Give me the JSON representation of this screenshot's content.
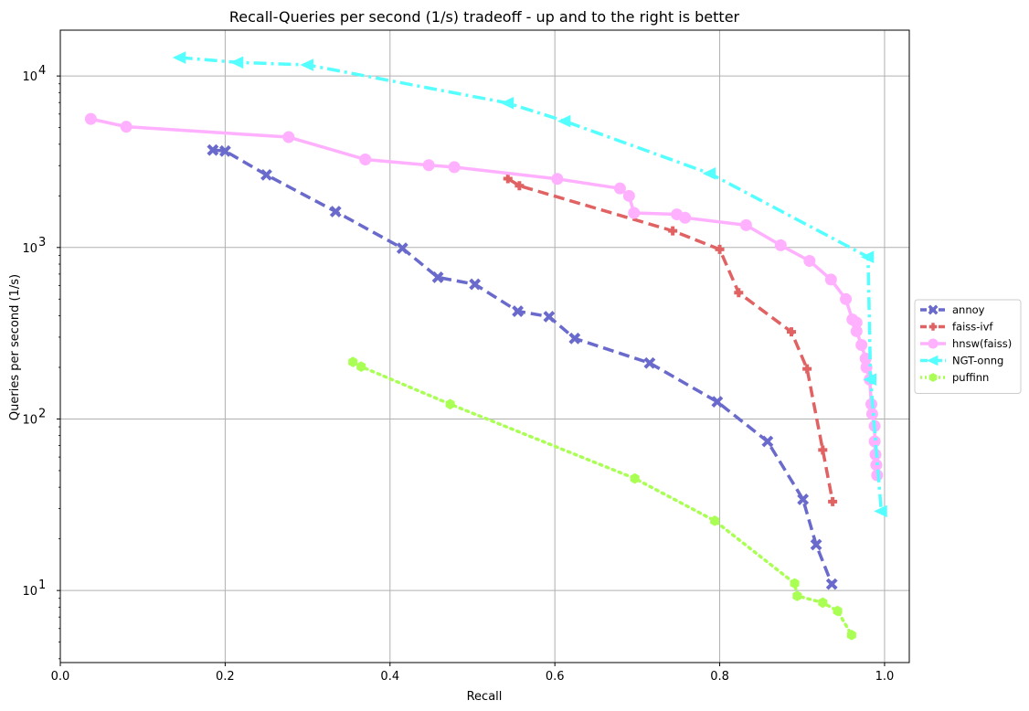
{
  "chart_data": {
    "type": "line",
    "title": "Recall-Queries per second (1/s) tradeoff - up and to the right is better",
    "xlabel": "Recall",
    "ylabel": "Queries per second (1/s)",
    "x_scale": "linear",
    "y_scale": "log",
    "xlim": [
      0.0,
      1.03
    ],
    "ylim": [
      3.8,
      18500
    ],
    "x_ticks": [
      {
        "value": 0.0,
        "label": "0.0"
      },
      {
        "value": 0.2,
        "label": "0.2"
      },
      {
        "value": 0.4,
        "label": "0.4"
      },
      {
        "value": 0.6,
        "label": "0.6"
      },
      {
        "value": 0.8,
        "label": "0.8"
      },
      {
        "value": 1.0,
        "label": "1.0"
      }
    ],
    "y_ticks": [
      {
        "value": 10,
        "base": "10",
        "exp": "1"
      },
      {
        "value": 100,
        "base": "10",
        "exp": "2"
      },
      {
        "value": 1000,
        "base": "10",
        "exp": "3"
      },
      {
        "value": 10000,
        "base": "10",
        "exp": "4"
      }
    ],
    "grid": true,
    "legend_placement": "right-outside",
    "series": [
      {
        "name": "annoy",
        "color": "#6a6acd",
        "line": "dashed",
        "marker": "x",
        "points": [
          [
            0.185,
            3700
          ],
          [
            0.2,
            3650
          ],
          [
            0.25,
            2650
          ],
          [
            0.334,
            1620
          ],
          [
            0.415,
            990
          ],
          [
            0.458,
            670
          ],
          [
            0.503,
            610
          ],
          [
            0.555,
            425
          ],
          [
            0.593,
            395
          ],
          [
            0.624,
            295
          ],
          [
            0.715,
            212
          ],
          [
            0.797,
            126
          ],
          [
            0.858,
            74
          ],
          [
            0.901,
            34
          ],
          [
            0.917,
            18.5
          ],
          [
            0.936,
            10.9
          ]
        ]
      },
      {
        "name": "faiss-ivf",
        "color": "#e06262",
        "line": "dashed",
        "marker": "plus",
        "points": [
          [
            0.543,
            2520
          ],
          [
            0.557,
            2290
          ],
          [
            0.743,
            1250
          ],
          [
            0.8,
            975
          ],
          [
            0.823,
            545
          ],
          [
            0.887,
            322
          ],
          [
            0.906,
            196
          ],
          [
            0.925,
            66
          ],
          [
            0.937,
            33
          ]
        ]
      },
      {
        "name": "hnsw(faiss)",
        "color": "#ffb0ff",
        "line": "solid",
        "marker": "circle",
        "points": [
          [
            0.037,
            5620
          ],
          [
            0.08,
            5060
          ],
          [
            0.277,
            4400
          ],
          [
            0.37,
            3260
          ],
          [
            0.447,
            3020
          ],
          [
            0.478,
            2940
          ],
          [
            0.603,
            2510
          ],
          [
            0.679,
            2210
          ],
          [
            0.69,
            2000
          ],
          [
            0.696,
            1590
          ],
          [
            0.748,
            1560
          ],
          [
            0.758,
            1490
          ],
          [
            0.832,
            1350
          ],
          [
            0.874,
            1030
          ],
          [
            0.909,
            835
          ],
          [
            0.935,
            650
          ],
          [
            0.953,
            500
          ],
          [
            0.961,
            380
          ],
          [
            0.966,
            365
          ],
          [
            0.966,
            325
          ],
          [
            0.972,
            270
          ],
          [
            0.977,
            225
          ],
          [
            0.978,
            200
          ],
          [
            0.982,
            170
          ],
          [
            0.984,
            122
          ],
          [
            0.985,
            107
          ],
          [
            0.988,
            91
          ],
          [
            0.988,
            74
          ],
          [
            0.989,
            62
          ],
          [
            0.99,
            54
          ],
          [
            0.991,
            47
          ]
        ]
      },
      {
        "name": "NGT-onng",
        "color": "#55ffff",
        "line": "dashdot",
        "marker": "triangle-left",
        "points": [
          [
            0.145,
            12800
          ],
          [
            0.215,
            12000
          ],
          [
            0.3,
            11600
          ],
          [
            0.543,
            6950
          ],
          [
            0.612,
            5450
          ],
          [
            0.788,
            2700
          ],
          [
            0.98,
            880
          ],
          [
            0.983,
            170
          ],
          [
            0.996,
            29
          ]
        ]
      },
      {
        "name": "puffinn",
        "color": "#aaff55",
        "line": "dotted",
        "marker": "hexagon",
        "points": [
          [
            0.355,
            215
          ],
          [
            0.365,
            202
          ],
          [
            0.473,
            122
          ],
          [
            0.697,
            45
          ],
          [
            0.794,
            25.5
          ],
          [
            0.891,
            11
          ],
          [
            0.894,
            9.3
          ],
          [
            0.925,
            8.5
          ],
          [
            0.943,
            7.6
          ],
          [
            0.96,
            5.5
          ]
        ]
      }
    ]
  }
}
